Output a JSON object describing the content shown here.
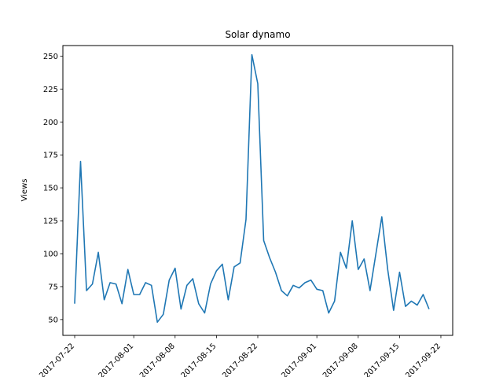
{
  "chart_data": {
    "type": "line",
    "title": "Solar dynamo",
    "xlabel": "",
    "ylabel": "Views",
    "grid": false,
    "legend": "none",
    "line_color": "#1f77b4",
    "ylim": [
      38,
      258
    ],
    "xlim": [
      "2017-07-20",
      "2017-09-24"
    ],
    "x_ticks": [
      "2017-07-22",
      "2017-08-01",
      "2017-08-08",
      "2017-08-15",
      "2017-08-22",
      "2017-09-01",
      "2017-09-08",
      "2017-09-15",
      "2017-09-22"
    ],
    "y_ticks": [
      50,
      75,
      100,
      125,
      150,
      175,
      200,
      225,
      250
    ],
    "series": [
      {
        "x": [
          "2017-07-22",
          "2017-07-23",
          "2017-07-24",
          "2017-07-25",
          "2017-07-26",
          "2017-07-27",
          "2017-07-28",
          "2017-07-29",
          "2017-07-30",
          "2017-07-31",
          "2017-08-01",
          "2017-08-02",
          "2017-08-03",
          "2017-08-04",
          "2017-08-05",
          "2017-08-06",
          "2017-08-07",
          "2017-08-08",
          "2017-08-09",
          "2017-08-10",
          "2017-08-11",
          "2017-08-12",
          "2017-08-13",
          "2017-08-14",
          "2017-08-15",
          "2017-08-16",
          "2017-08-17",
          "2017-08-18",
          "2017-08-19",
          "2017-08-20",
          "2017-08-21",
          "2017-08-22",
          "2017-08-23",
          "2017-08-24",
          "2017-08-25",
          "2017-08-26",
          "2017-08-27",
          "2017-08-28",
          "2017-08-29",
          "2017-08-30",
          "2017-08-31",
          "2017-09-01",
          "2017-09-02",
          "2017-09-03",
          "2017-09-04",
          "2017-09-05",
          "2017-09-06",
          "2017-09-07",
          "2017-09-08",
          "2017-09-09",
          "2017-09-10",
          "2017-09-11",
          "2017-09-12",
          "2017-09-13",
          "2017-09-14",
          "2017-09-15",
          "2017-09-16",
          "2017-09-17",
          "2017-09-18",
          "2017-09-19",
          "2017-09-20"
        ],
        "values": [
          62,
          170,
          72,
          77,
          101,
          65,
          78,
          77,
          62,
          88,
          69,
          69,
          78,
          76,
          48,
          54,
          80,
          89,
          58,
          76,
          81,
          62,
          55,
          77,
          87,
          92,
          65,
          90,
          93,
          126,
          251,
          229,
          110,
          97,
          86,
          72,
          68,
          76,
          74,
          78,
          80,
          73,
          72,
          55,
          64,
          101,
          89,
          125,
          88,
          96,
          72,
          100,
          128,
          88,
          57,
          86,
          60,
          64,
          61,
          69,
          58
        ]
      }
    ]
  }
}
